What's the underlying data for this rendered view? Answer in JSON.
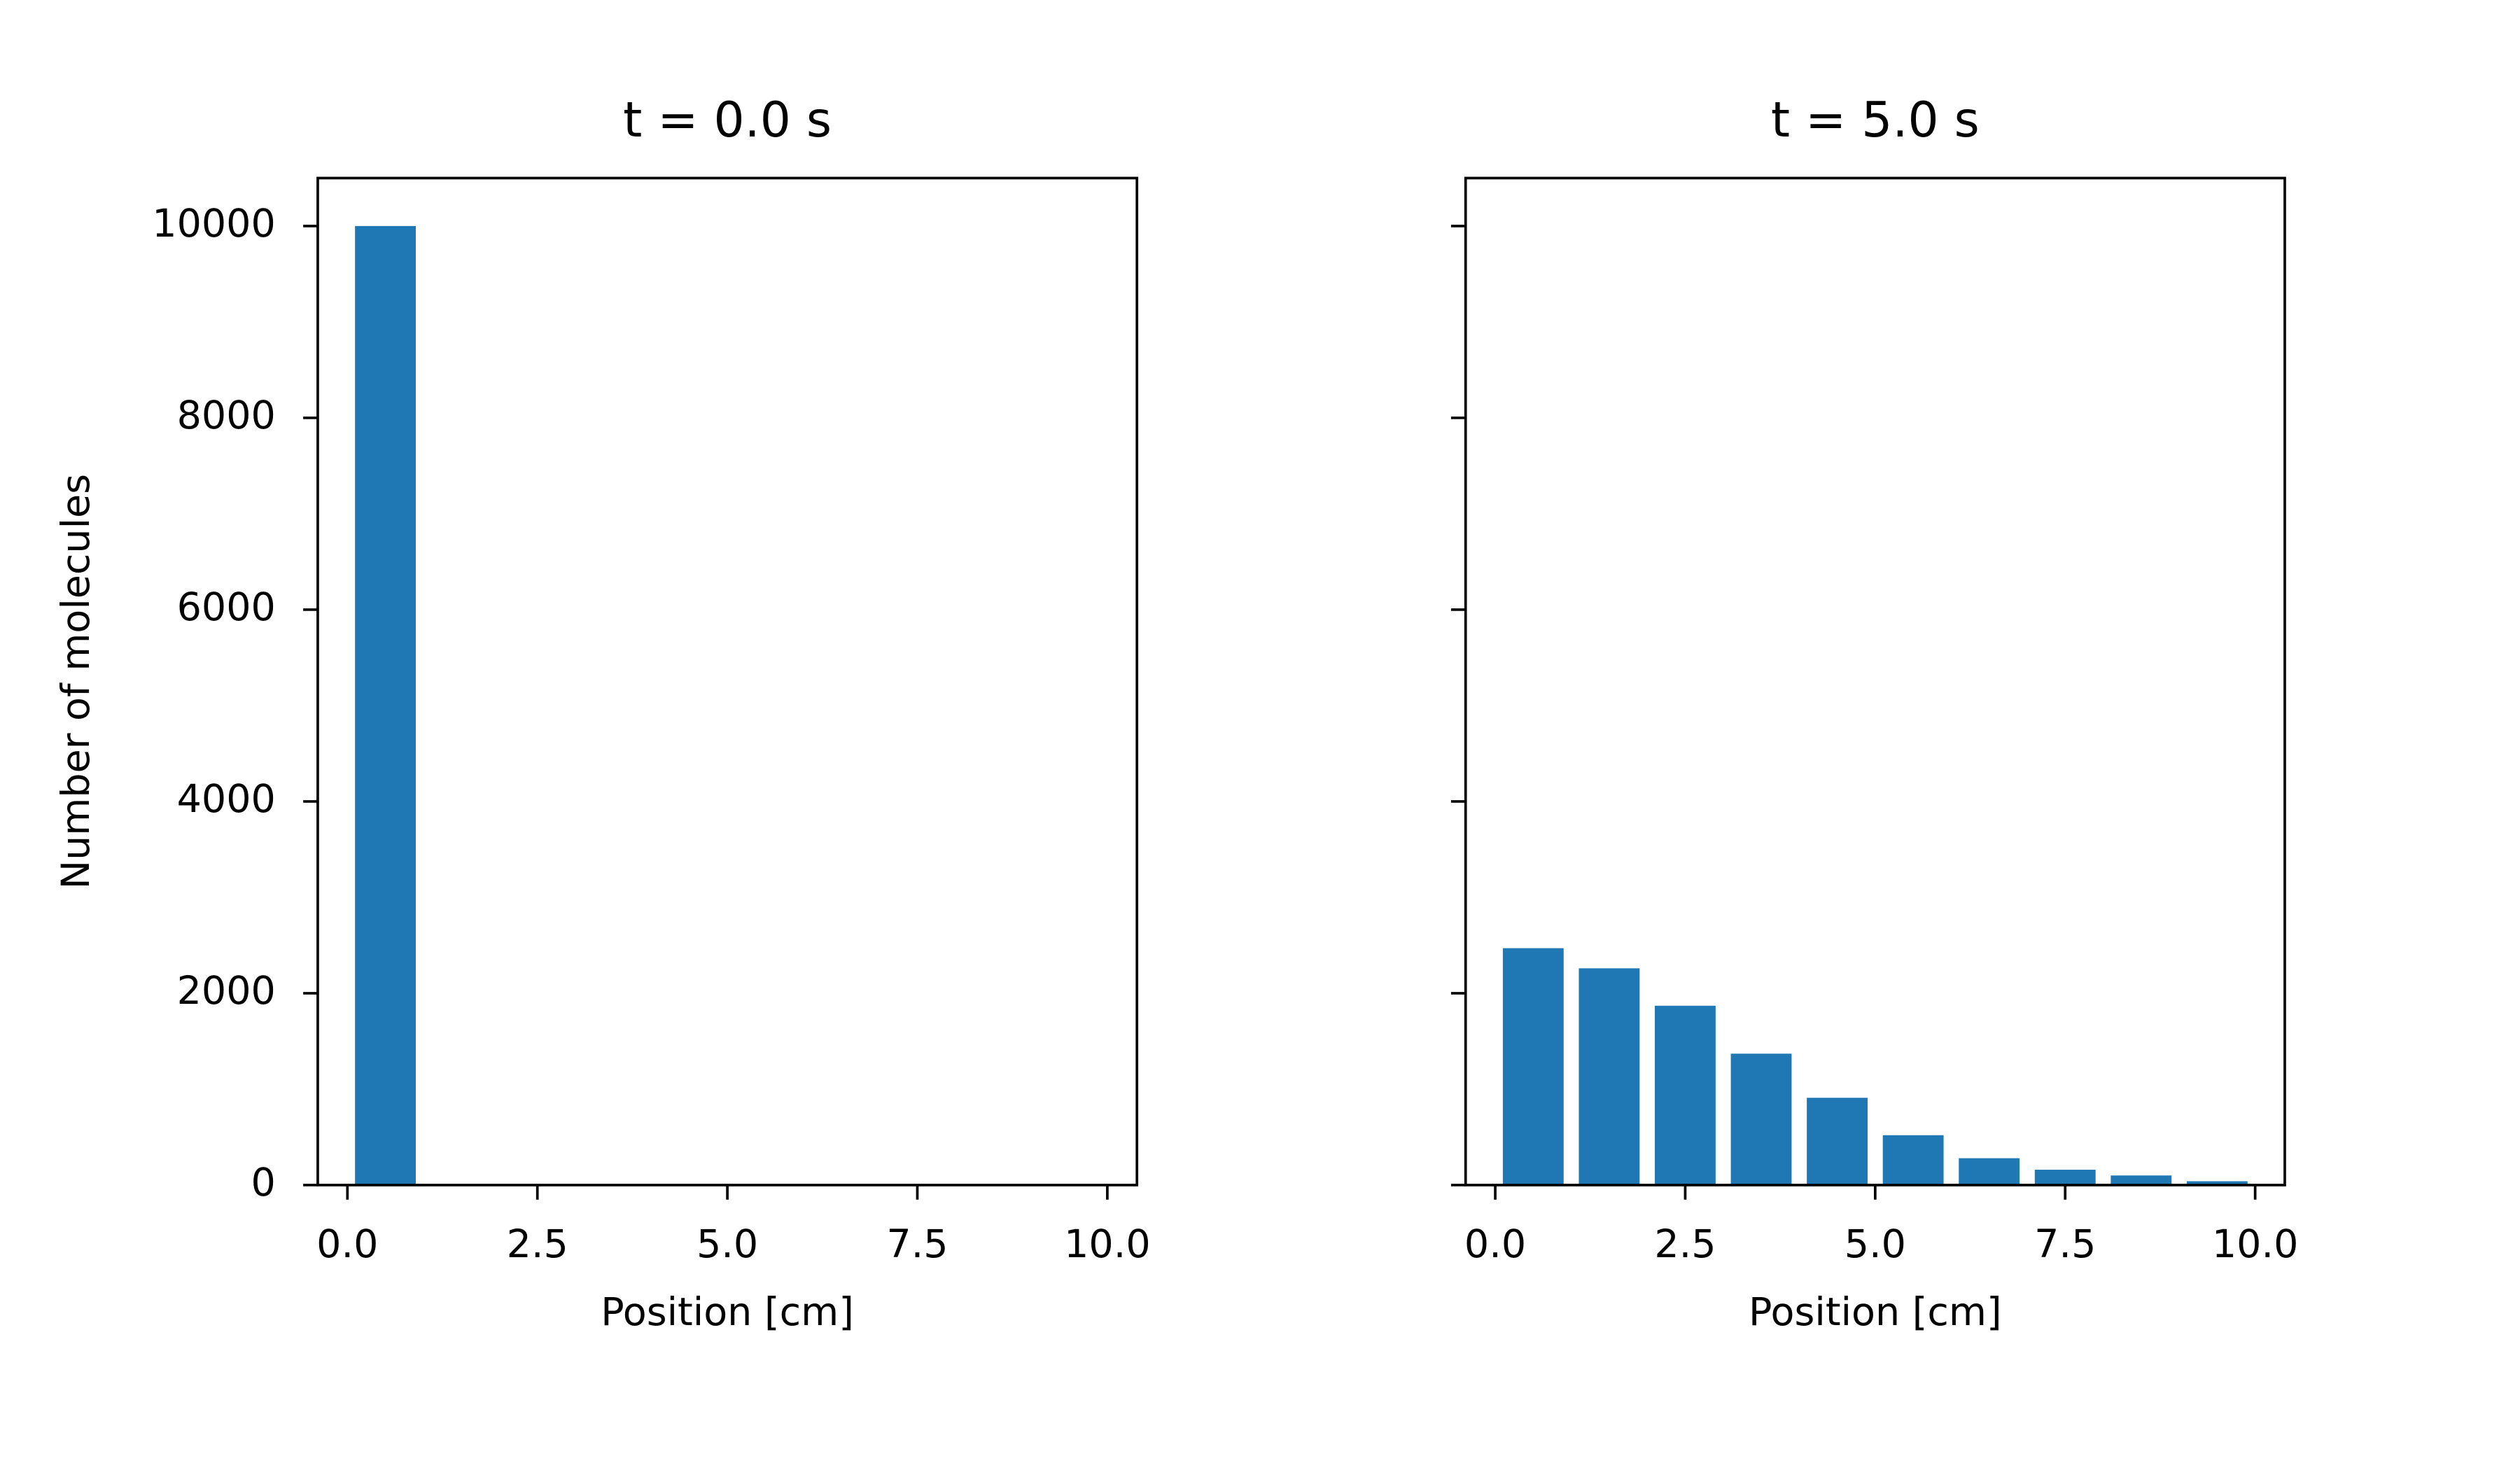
{
  "chart_data": [
    {
      "type": "histogram",
      "title": "t = 0.0 s",
      "xlabel": "Position [cm]",
      "ylabel": "Number of molecules",
      "bins": [
        0,
        1,
        2,
        3,
        4,
        5,
        6,
        7,
        8,
        9,
        10
      ],
      "values": [
        10000,
        0,
        0,
        0,
        0,
        0,
        0,
        0,
        0,
        0
      ],
      "color": "#1f77b4",
      "rwidth": 0.8,
      "xlim": [
        -0.39,
        10.39
      ],
      "xticks": [
        {
          "value": 0,
          "label": "0.0"
        },
        2.5,
        {
          "value": 5,
          "label": "5.0"
        },
        7.5,
        {
          "value": 10,
          "label": "10.0"
        }
      ],
      "ylim": [
        0,
        10500
      ],
      "yticks": [
        0,
        2000,
        4000,
        6000,
        8000,
        10000
      ],
      "grid": false
    },
    {
      "type": "histogram",
      "title": "t = 5.0 s",
      "xlabel": "Position [cm]",
      "bins": [
        0,
        1,
        2,
        3,
        4,
        5,
        6,
        7,
        8,
        9,
        10
      ],
      "values": [
        2470,
        2260,
        1870,
        1370,
        910,
        520,
        280,
        160,
        100,
        40
      ],
      "color": "#1f77b4",
      "rwidth": 0.8,
      "xlim": [
        -0.39,
        10.39
      ],
      "xticks": [
        {
          "value": 0,
          "label": "0.0"
        },
        2.5,
        {
          "value": 5,
          "label": "5.0"
        },
        7.5,
        {
          "value": 10,
          "label": "10.0"
        }
      ],
      "ylim": [
        0,
        10500
      ],
      "yticks": [
        0,
        2000,
        4000,
        6000,
        8000,
        10000
      ],
      "ytick_labels": false,
      "grid": false
    }
  ]
}
